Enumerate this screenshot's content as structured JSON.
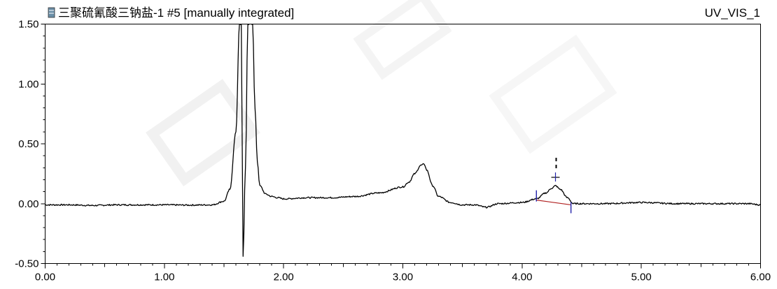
{
  "chart_data": {
    "type": "line",
    "title_left": "三聚硫氰酸三钠盐-1 #5 [manually integrated]",
    "title_right": "UV_VIS_1",
    "xlabel": "",
    "ylabel": "",
    "xlim": [
      0.0,
      6.0
    ],
    "ylim": [
      -0.5,
      1.5
    ],
    "x_ticks": [
      "0.00",
      "1.00",
      "2.00",
      "3.00",
      "4.00",
      "5.00",
      "6.00"
    ],
    "y_ticks": [
      "-0.50",
      "0.00",
      "0.50",
      "1.00",
      "1.50"
    ],
    "x_tick_values": [
      0,
      1,
      2,
      3,
      4,
      5,
      6
    ],
    "y_tick_values": [
      -0.5,
      0,
      0.5,
      1.0,
      1.5
    ],
    "grid": false,
    "series": [
      {
        "color": "#000000",
        "x": [
          0.0,
          0.2,
          0.4,
          0.6,
          0.8,
          1.0,
          1.2,
          1.4,
          1.5,
          1.55,
          1.6,
          1.63,
          1.645,
          1.66,
          1.68,
          1.7,
          1.72,
          1.74,
          1.76,
          1.78,
          1.8,
          1.85,
          1.9,
          1.95,
          2.0,
          2.2,
          2.4,
          2.6,
          2.8,
          3.0,
          3.05,
          3.1,
          3.15,
          3.18,
          3.2,
          3.25,
          3.3,
          3.4,
          3.5,
          3.6,
          3.7,
          3.8,
          4.0,
          4.12,
          4.2,
          4.25,
          4.28,
          4.32,
          4.38,
          4.43,
          4.5,
          4.7,
          5.0,
          5.3,
          5.6,
          5.9,
          6.0
        ],
        "y": [
          -0.01,
          -0.01,
          -0.015,
          -0.01,
          -0.01,
          -0.01,
          -0.012,
          -0.01,
          0.02,
          0.12,
          0.6,
          1.5,
          1.5,
          -0.44,
          0.3,
          1.5,
          1.5,
          1.5,
          0.8,
          0.35,
          0.15,
          0.08,
          0.06,
          0.05,
          0.04,
          0.05,
          0.05,
          0.06,
          0.09,
          0.14,
          0.18,
          0.25,
          0.32,
          0.33,
          0.28,
          0.15,
          0.06,
          0.01,
          -0.01,
          -0.01,
          -0.03,
          0.0,
          0.01,
          0.04,
          0.09,
          0.13,
          0.15,
          0.12,
          0.05,
          0.0,
          0.0,
          0.0,
          0.01,
          0.0,
          0.0,
          0.0,
          -0.01
        ]
      }
    ],
    "integration": {
      "start_x": 4.12,
      "end_x": 4.41,
      "start_y": 0.03,
      "end_y": -0.01,
      "apex_x": 4.28,
      "apex_y": 0.15
    },
    "colors": {
      "trace": "#000000",
      "integration_marker": "#2222aa",
      "integration_baseline": "#b02020",
      "icon_fill": "#6b8fa8"
    }
  }
}
